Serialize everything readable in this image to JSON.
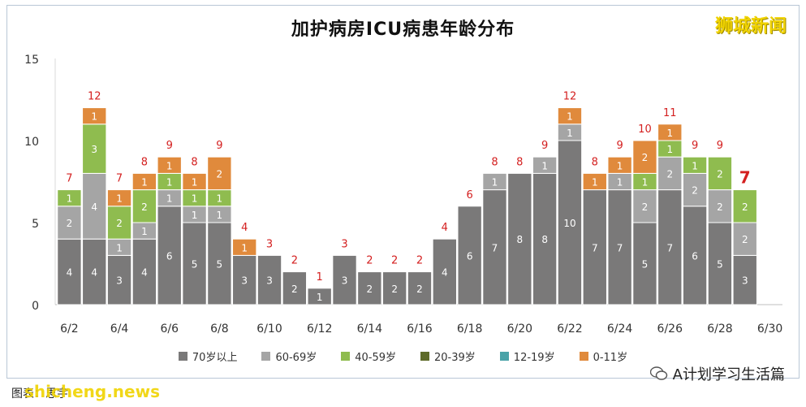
{
  "title": "加护病房ICU病患年龄分布",
  "brand": "狮城新闻",
  "footer_left": "图表：思宇",
  "watermark": "shicheng.news",
  "footer_right": "A计划学习生活篇",
  "colors": {
    "70+": "#7a7979",
    "60-69": "#a5a5a5",
    "40-59": "#8fbc4f",
    "20-39": "#5e6b29",
    "12-19": "#4aa3a8",
    "0-11": "#e08a3c",
    "total_label": "#d42020"
  },
  "chart_data": {
    "type": "bar",
    "stacked": true,
    "title": "加护病房ICU病患年龄分布",
    "xlabel": "",
    "ylabel": "",
    "ylim": [
      0,
      15
    ],
    "yticks": [
      0,
      5,
      10,
      15
    ],
    "grid": false,
    "legend_position": "bottom",
    "categories": [
      "6/2",
      "6/3",
      "6/4",
      "6/5",
      "6/6",
      "6/7",
      "6/8",
      "6/9",
      "6/10",
      "6/11",
      "6/12",
      "6/13",
      "6/14",
      "6/15",
      "6/16",
      "6/17",
      "6/18",
      "6/19",
      "6/20",
      "6/21",
      "6/22",
      "6/23",
      "6/24",
      "6/25",
      "6/26",
      "6/27",
      "6/28",
      "6/29",
      "6/30"
    ],
    "xtick_labels": [
      "6/2",
      "",
      "6/4",
      "",
      "6/6",
      "",
      "6/8",
      "",
      "6/10",
      "",
      "6/12",
      "",
      "6/14",
      "",
      "6/16",
      "",
      "6/18",
      "",
      "6/20",
      "",
      "6/22",
      "",
      "6/24",
      "",
      "6/26",
      "",
      "6/28",
      "",
      "6/30"
    ],
    "series": [
      {
        "name": "70岁以上",
        "key": "70+",
        "values": [
          4,
          4,
          3,
          4,
          6,
          5,
          5,
          3,
          3,
          2,
          1,
          3,
          2,
          2,
          2,
          4,
          6,
          7,
          8,
          8,
          10,
          7,
          7,
          5,
          7,
          6,
          5,
          3,
          0
        ]
      },
      {
        "name": "60-69岁",
        "key": "60-69",
        "values": [
          2,
          4,
          1,
          1,
          1,
          1,
          1,
          0,
          0,
          0,
          0,
          0,
          0,
          0,
          0,
          0,
          0,
          1,
          0,
          1,
          1,
          0,
          1,
          2,
          2,
          2,
          2,
          2,
          0
        ]
      },
      {
        "name": "40-59岁",
        "key": "40-59",
        "values": [
          1,
          3,
          2,
          2,
          1,
          1,
          1,
          0,
          0,
          0,
          0,
          0,
          0,
          0,
          0,
          0,
          0,
          0,
          0,
          0,
          0,
          0,
          0,
          1,
          1,
          1,
          2,
          2,
          0
        ]
      },
      {
        "name": "20-39岁",
        "key": "20-39",
        "values": [
          0,
          0,
          0,
          0,
          0,
          0,
          0,
          0,
          0,
          0,
          0,
          0,
          0,
          0,
          0,
          0,
          0,
          0,
          0,
          0,
          0,
          0,
          0,
          0,
          0,
          0,
          0,
          0,
          0
        ]
      },
      {
        "name": "12-19岁",
        "key": "12-19",
        "values": [
          0,
          0,
          0,
          0,
          0,
          0,
          0,
          0,
          0,
          0,
          0,
          0,
          0,
          0,
          0,
          0,
          0,
          0,
          0,
          0,
          0,
          0,
          0,
          0,
          0,
          0,
          0,
          0,
          0
        ]
      },
      {
        "name": "0-11岁",
        "key": "0-11",
        "values": [
          0,
          1,
          1,
          1,
          1,
          1,
          2,
          1,
          0,
          0,
          0,
          0,
          0,
          0,
          0,
          0,
          0,
          0,
          0,
          0,
          1,
          1,
          1,
          2,
          1,
          0,
          0,
          0,
          0
        ]
      }
    ],
    "totals": [
      "7",
      "12",
      "7",
      "8",
      "9",
      "8",
      "9",
      "4",
      "3",
      "2",
      "1",
      "3",
      "2",
      "2",
      "2",
      "4",
      "6",
      "8",
      "8",
      "9",
      "12",
      "8",
      "9",
      "10",
      "11",
      "9",
      "9",
      "7",
      ""
    ]
  }
}
